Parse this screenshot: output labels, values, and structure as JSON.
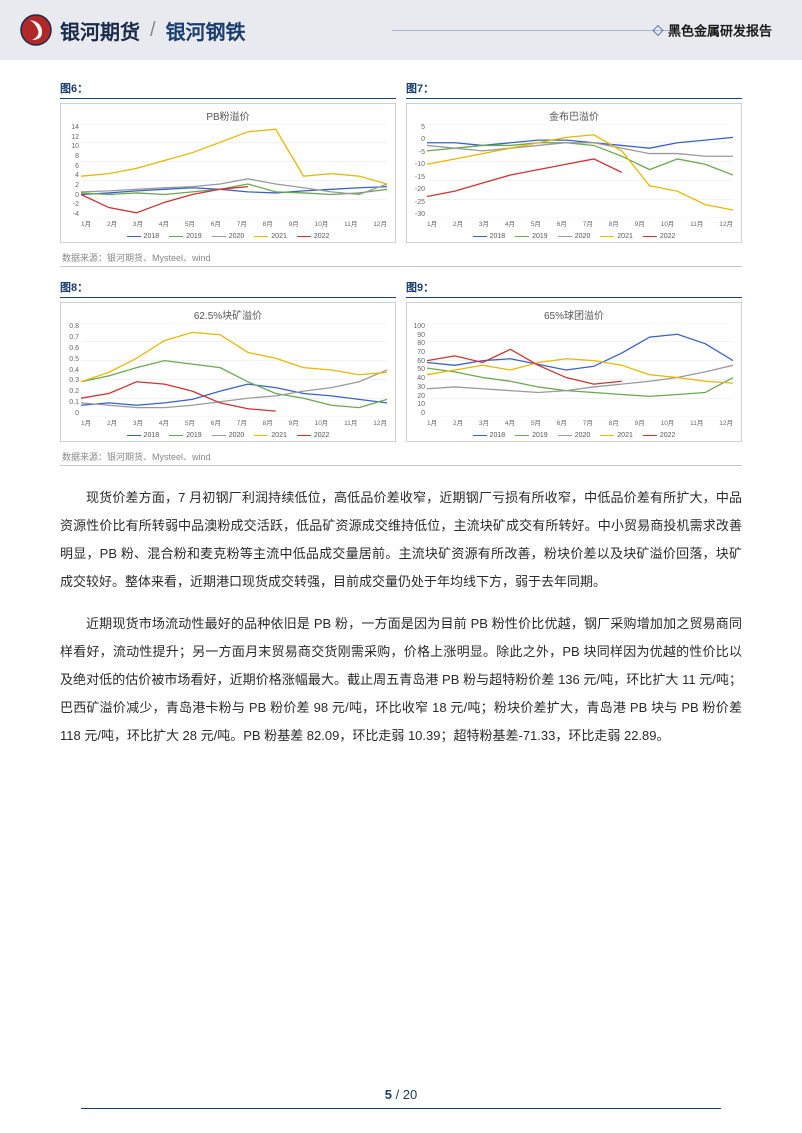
{
  "header": {
    "brand_main": "银河期货",
    "brand_sub": "银河钢铁",
    "report_title": "黑色金属研发报告"
  },
  "charts": {
    "row1": {
      "left": {
        "label": "图6：",
        "title": "PB粉溢价",
        "ylim": [
          -4,
          14
        ],
        "yticks": [
          "14",
          "12",
          "10",
          "8",
          "6",
          "4",
          "2",
          "0",
          "-2",
          "-4"
        ],
        "xticks": [
          "1月",
          "2月",
          "3月",
          "4月",
          "5月",
          "6月",
          "7月",
          "8月",
          "9月",
          "10月",
          "11月",
          "12月"
        ]
      },
      "right": {
        "label": "图7：",
        "title": "金布巴溢价",
        "ylim": [
          -30,
          5
        ],
        "yticks": [
          "5",
          "0",
          "-5",
          "-10",
          "-15",
          "-20",
          "-25",
          "-30"
        ],
        "xticks": [
          "1月",
          "2月",
          "3月",
          "4月",
          "5月",
          "6月",
          "7月",
          "8月",
          "9月",
          "10月",
          "11月",
          "12月"
        ]
      }
    },
    "row2": {
      "left": {
        "label": "图8：",
        "title": "62.5%块矿溢价",
        "ylim": [
          0,
          0.8
        ],
        "yticks": [
          "0.8",
          "0.7",
          "0.6",
          "0.5",
          "0.4",
          "0.3",
          "0.2",
          "0.1",
          "0"
        ],
        "xticks": [
          "1月",
          "2月",
          "3月",
          "4月",
          "5月",
          "6月",
          "7月",
          "8月",
          "9月",
          "10月",
          "11月",
          "12月"
        ]
      },
      "right": {
        "label": "图9：",
        "title": "65%球团溢价",
        "ylim": [
          0,
          100
        ],
        "yticks": [
          "100",
          "90",
          "80",
          "70",
          "60",
          "50",
          "40",
          "30",
          "20",
          "10",
          "0"
        ],
        "xticks": [
          "1月",
          "2月",
          "3月",
          "4月",
          "5月",
          "6月",
          "7月",
          "8月",
          "9月",
          "10月",
          "11月",
          "12月"
        ]
      }
    },
    "legend": [
      {
        "label": "2018",
        "color": "#3a62c4"
      },
      {
        "label": "2019",
        "color": "#6aa84f"
      },
      {
        "label": "2020",
        "color": "#9a9a9a"
      },
      {
        "label": "2021",
        "color": "#e6b800"
      },
      {
        "label": "2022",
        "color": "#cc3333"
      }
    ],
    "source": "数据来源：银河期货、Mysteel、wind",
    "colors": {
      "grid": "#e5e5e5",
      "axis": "#bcbcbc"
    },
    "series_row1_left": {
      "2018": [
        0.5,
        0.8,
        1.2,
        1.5,
        1.8,
        1.5,
        1.0,
        0.8,
        1.2,
        1.5,
        1.8,
        2.0
      ],
      "2019": [
        0.8,
        0.5,
        0.8,
        0.5,
        1.0,
        1.5,
        2.5,
        1.0,
        0.8,
        0.5,
        0.8,
        1.5
      ],
      "2020": [
        1.0,
        1.2,
        1.5,
        1.8,
        2.0,
        2.5,
        3.5,
        2.5,
        1.8,
        1.0,
        0.5,
        2.5
      ],
      "2021": [
        4.0,
        4.5,
        5.5,
        7.0,
        8.5,
        10.5,
        12.5,
        13.0,
        4.0,
        4.5,
        4.0,
        2.5
      ],
      "2022": [
        0.5,
        -2.0,
        -3.0,
        -1.0,
        0.5,
        1.5,
        2.0
      ]
    },
    "series_row1_right": {
      "2018": [
        -2,
        -2,
        -3,
        -2,
        -1,
        -1,
        -2,
        -3,
        -4,
        -2,
        -1,
        0
      ],
      "2019": [
        -5,
        -4,
        -3,
        -3,
        -2,
        -2,
        -3,
        -7,
        -12,
        -8,
        -10,
        -14
      ],
      "2020": [
        -3,
        -4,
        -5,
        -4,
        -3,
        -2,
        -2,
        -4,
        -6,
        -6,
        -7,
        -7
      ],
      "2021": [
        -10,
        -8,
        -6,
        -4,
        -2,
        0,
        1,
        -5,
        -18,
        -20,
        -25,
        -27
      ],
      "2022": [
        -22,
        -20,
        -17,
        -14,
        -12,
        -10,
        -8,
        -13
      ]
    },
    "series_row2_left": {
      "2018": [
        0.1,
        0.12,
        0.1,
        0.12,
        0.15,
        0.22,
        0.28,
        0.25,
        0.2,
        0.18,
        0.15,
        0.12
      ],
      "2019": [
        0.3,
        0.35,
        0.42,
        0.48,
        0.45,
        0.42,
        0.3,
        0.2,
        0.16,
        0.1,
        0.08,
        0.15
      ],
      "2020": [
        0.12,
        0.1,
        0.08,
        0.08,
        0.1,
        0.13,
        0.16,
        0.18,
        0.22,
        0.25,
        0.3,
        0.4
      ],
      "2021": [
        0.3,
        0.38,
        0.5,
        0.65,
        0.72,
        0.7,
        0.55,
        0.5,
        0.42,
        0.4,
        0.36,
        0.38
      ],
      "2022": [
        0.16,
        0.2,
        0.3,
        0.28,
        0.22,
        0.12,
        0.07,
        0.05
      ]
    },
    "series_row2_right": {
      "2018": [
        58,
        55,
        60,
        62,
        56,
        50,
        54,
        68,
        85,
        88,
        78,
        60
      ],
      "2019": [
        52,
        48,
        42,
        38,
        32,
        28,
        26,
        24,
        22,
        24,
        26,
        42
      ],
      "2020": [
        30,
        32,
        30,
        28,
        26,
        28,
        32,
        35,
        38,
        42,
        48,
        55
      ],
      "2021": [
        45,
        50,
        55,
        50,
        58,
        62,
        60,
        55,
        45,
        42,
        38,
        36
      ],
      "2022": [
        60,
        65,
        58,
        72,
        55,
        42,
        35,
        38
      ]
    }
  },
  "body": {
    "para1": "现货价差方面，7 月初钢厂利润持续低位，高低品价差收窄，近期钢厂亏损有所收窄，中低品价差有所扩大，中品资源性价比有所转弱中品澳粉成交活跃，低品矿资源成交维持低位，主流块矿成交有所转好。中小贸易商投机需求改善明显，PB 粉、混合粉和麦克粉等主流中低品成交量居前。主流块矿资源有所改善，粉块价差以及块矿溢价回落，块矿成交较好。整体来看，近期港口现货成交转强，目前成交量仍处于年均线下方，弱于去年同期。",
    "para2": "近期现货市场流动性最好的品种依旧是 PB 粉，一方面是因为目前 PB 粉性价比优越，钢厂采购增加加之贸易商同样看好，流动性提升；另一方面月末贸易商交货刚需采购，价格上涨明显。除此之外，PB 块同样因为优越的性价比以及绝对低的估价被市场看好，近期价格涨幅最大。截止周五青岛港 PB 粉与超特粉价差 136 元/吨，环比扩大 11 元/吨；巴西矿溢价减少，青岛港卡粉与 PB 粉价差 98 元/吨，环比收窄 18 元/吨；粉块价差扩大，青岛港 PB 块与 PB 粉价差 118 元/吨，环比扩大 28 元/吨。PB 粉基差 82.09，环比走弱 10.39；超特粉基差-71.33，环比走弱 22.89。"
  },
  "footer": {
    "current": "5",
    "sep": " / ",
    "total": "20"
  }
}
